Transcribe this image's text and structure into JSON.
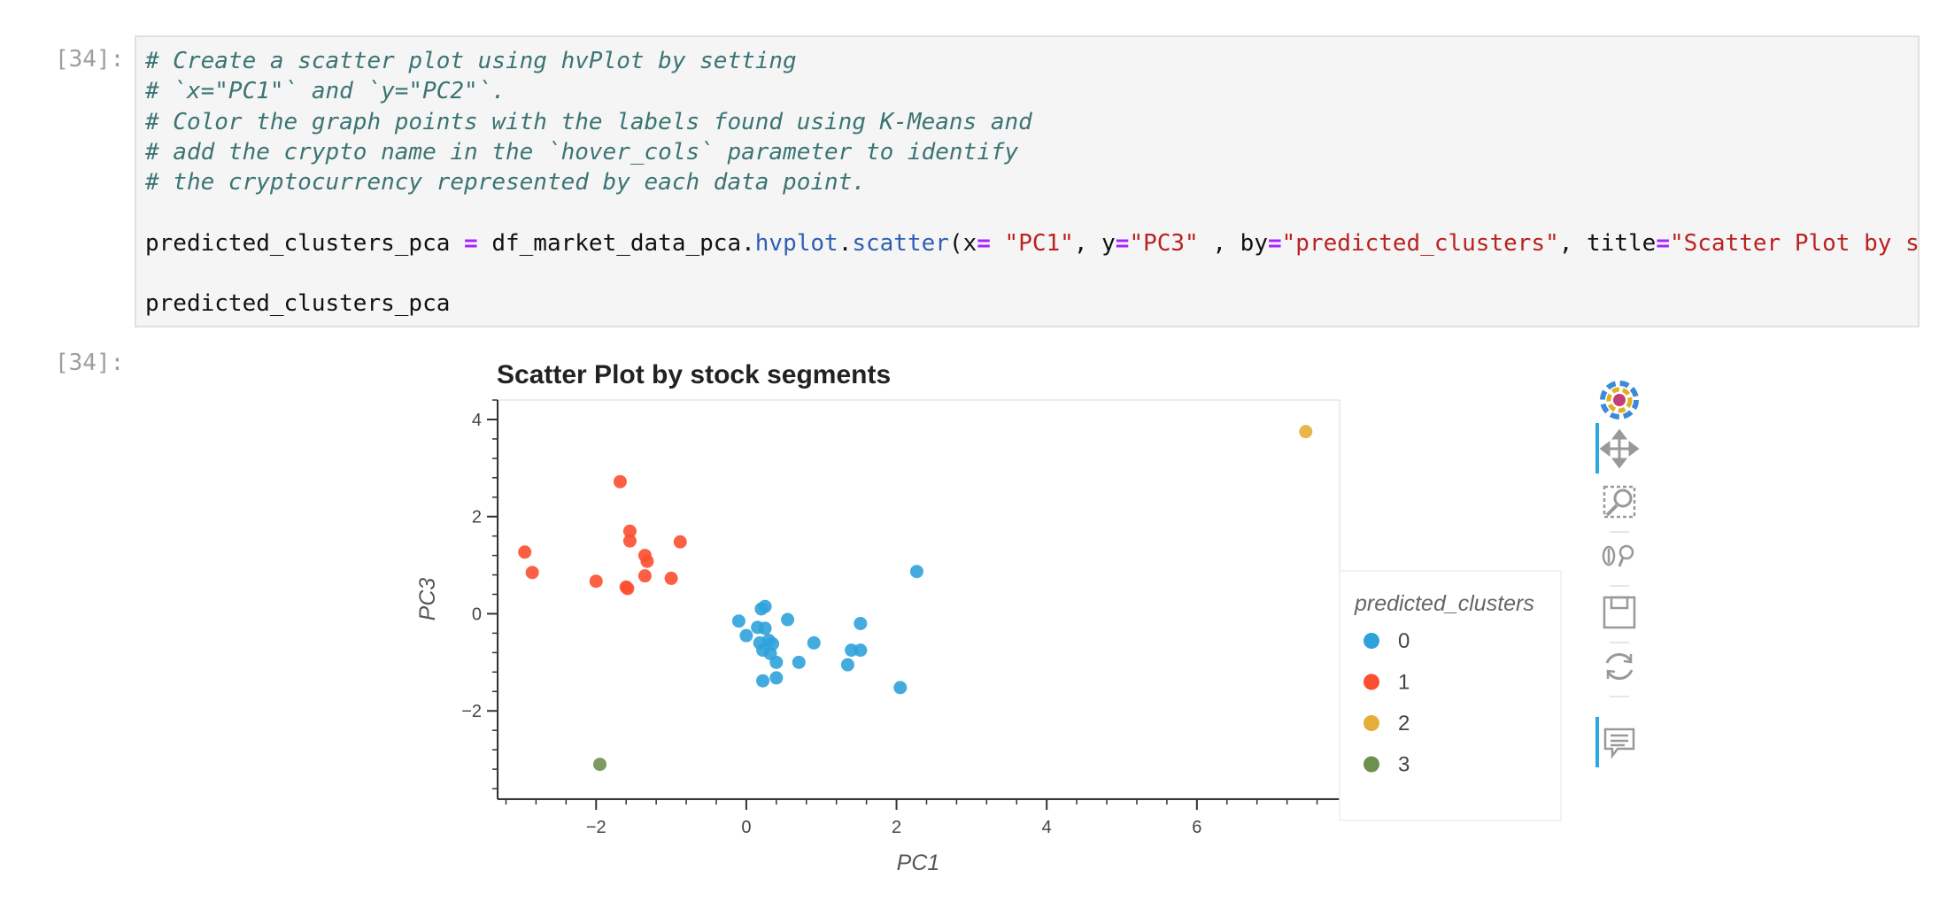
{
  "notebook": {
    "input_prompt": "[34]:",
    "output_prompt": "[34]:",
    "comments": [
      "# Create a scatter plot using hvPlot by setting",
      "# `x=\"PC1\"` and `y=\"PC2\"`.",
      "# Color the graph points with the labels found using K-Means and",
      "# add the crypto name in the `hover_cols` parameter to identify",
      "# the cryptocurrency represented by each data point."
    ],
    "code_line": {
      "var": "predicted_clusters_pca ",
      "eq": "=",
      "obj": " df_market_data_pca.",
      "attr1": "hvplot",
      "dot": ".",
      "attr2": "scatter",
      "p1": "(x",
      "eq2": "=",
      "s1": " \"PC1\"",
      "p2": ", y",
      "eq3": "=",
      "s2": "\"PC3\"",
      "p3": " , by",
      "eq4": "=",
      "s3": "\"predicted_clusters\"",
      "p4": ", title",
      "eq5": "=",
      "s4": "\"Scatter Plot by stock segments\")"
    },
    "last_line": "predicted_clusters_pca"
  },
  "chart_data": {
    "type": "scatter",
    "title": "Scatter Plot by stock segments",
    "xlabel": "PC1",
    "ylabel": "PC3",
    "xlim": [
      -3.3,
      7.9
    ],
    "ylim": [
      -3.8,
      4.4
    ],
    "xticks": [
      -2,
      0,
      2,
      4,
      6
    ],
    "yticks": [
      -2,
      0,
      2,
      4
    ],
    "legend_title": "predicted_clusters",
    "legend_position": "right",
    "series": [
      {
        "name": "0",
        "color": "#30a2da",
        "points": [
          [
            -0.1,
            -0.15
          ],
          [
            0.2,
            0.1
          ],
          [
            0.25,
            0.15
          ],
          [
            0.55,
            -0.12
          ],
          [
            -0.0,
            -0.45
          ],
          [
            0.15,
            -0.28
          ],
          [
            0.25,
            -0.3
          ],
          [
            0.3,
            -0.55
          ],
          [
            0.35,
            -0.62
          ],
          [
            0.22,
            -0.75
          ],
          [
            0.32,
            -0.82
          ],
          [
            0.4,
            -1.0
          ],
          [
            0.7,
            -1.0
          ],
          [
            0.9,
            -0.6
          ],
          [
            0.22,
            -1.38
          ],
          [
            0.4,
            -1.32
          ],
          [
            1.35,
            -1.05
          ],
          [
            1.4,
            -0.75
          ],
          [
            1.52,
            -0.75
          ],
          [
            1.52,
            -0.2
          ],
          [
            2.05,
            -1.52
          ],
          [
            2.27,
            0.87
          ],
          [
            0.18,
            -0.6
          ]
        ]
      },
      {
        "name": "1",
        "color": "#fc4f30",
        "points": [
          [
            -1.68,
            2.72
          ],
          [
            -1.55,
            1.7
          ],
          [
            -1.55,
            1.5
          ],
          [
            -0.88,
            1.48
          ],
          [
            -1.35,
            1.2
          ],
          [
            -1.32,
            1.08
          ],
          [
            -2.95,
            1.27
          ],
          [
            -2.85,
            0.85
          ],
          [
            -2.0,
            0.67
          ],
          [
            -1.6,
            0.55
          ],
          [
            -1.35,
            0.78
          ],
          [
            -1.0,
            0.73
          ],
          [
            -1.58,
            0.52
          ]
        ]
      },
      {
        "name": "2",
        "color": "#e5ae38",
        "points": [
          [
            7.45,
            3.75
          ]
        ]
      },
      {
        "name": "3",
        "color": "#6d904f",
        "points": [
          [
            -1.95,
            -3.1
          ]
        ]
      }
    ]
  },
  "toolbar": {
    "icons": [
      "bokeh-logo-icon",
      "pan-icon",
      "box-zoom-icon",
      "wheel-zoom-icon",
      "save-icon",
      "reset-icon",
      "hover-icon"
    ]
  }
}
